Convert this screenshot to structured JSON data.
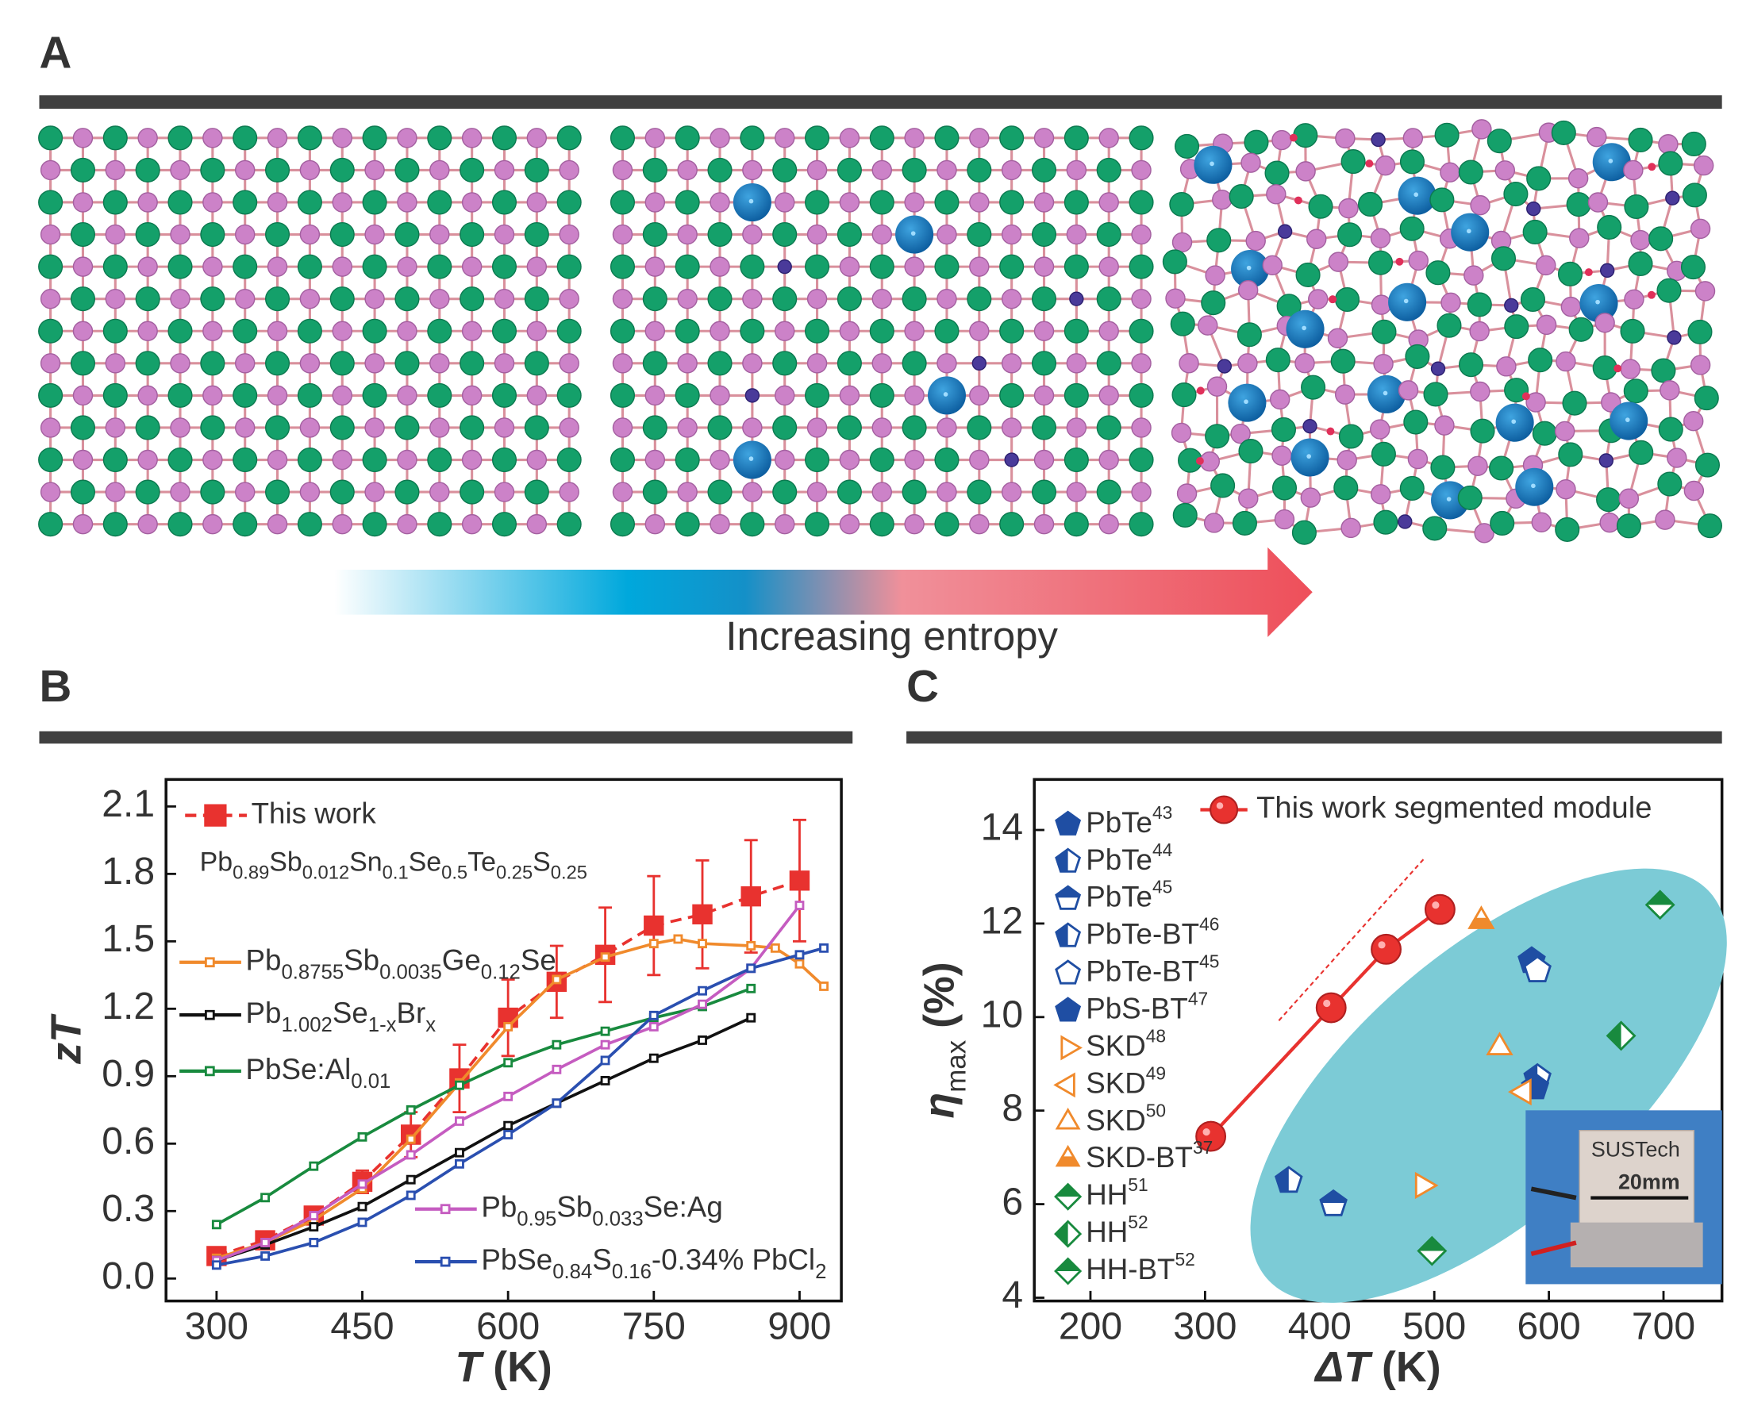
{
  "panels": {
    "A": {
      "label": "A",
      "caption": "Increasing entropy"
    },
    "B": {
      "label": "B"
    },
    "C": {
      "label": "C"
    }
  },
  "chart_data": [
    {
      "type": "line",
      "xlabel": "T (K)",
      "ylabel": "zT",
      "annotation": "Pb0.89Sb0.012Sn0.1Se0.5Te0.25S0.25",
      "xlim": [
        248,
        943
      ],
      "xticks": [
        300,
        450,
        600,
        750,
        900
      ],
      "ylim": [
        -0.1,
        2.22
      ],
      "yticks": [
        {
          "value": 0,
          "label": "0.0"
        },
        0.3,
        0.6,
        0.9,
        1.2,
        1.5,
        1.8,
        2.1
      ],
      "series": [
        {
          "name": "This work",
          "color": "#e8322f",
          "marker": "square:filled",
          "line_style": "dashed",
          "x": [
            300,
            350,
            400,
            450,
            500,
            550,
            600,
            650,
            700,
            750,
            800,
            850,
            900
          ],
          "values": [
            0.1,
            0.17,
            0.28,
            0.43,
            0.64,
            0.89,
            1.16,
            1.32,
            1.44,
            1.57,
            1.62,
            1.7,
            1.77
          ],
          "errors": [
            0.02,
            0.03,
            0.03,
            0.05,
            0.1,
            0.15,
            0.17,
            0.16,
            0.21,
            0.22,
            0.24,
            0.25,
            0.27
          ]
        },
        {
          "name": "Pb0.8755Sb0.0035Ge0.12Se",
          "color": "#f08a2c",
          "marker": "square:open",
          "line_style": "solid",
          "x": [
            300,
            350,
            400,
            450,
            500,
            550,
            600,
            650,
            700,
            750,
            775,
            800,
            850,
            875,
            900,
            925
          ],
          "values": [
            0.09,
            0.16,
            0.26,
            0.4,
            0.62,
            0.87,
            1.12,
            1.33,
            1.43,
            1.49,
            1.51,
            1.49,
            1.48,
            1.47,
            1.4,
            1.3
          ]
        },
        {
          "name": "Pb1.002Se1-xBrx",
          "color": "#111111",
          "marker": "square:open",
          "line_style": "solid",
          "x": [
            300,
            350,
            400,
            450,
            500,
            550,
            600,
            650,
            700,
            750,
            800,
            850
          ],
          "values": [
            0.08,
            0.15,
            0.23,
            0.32,
            0.44,
            0.56,
            0.68,
            0.78,
            0.88,
            0.98,
            1.06,
            1.16
          ]
        },
        {
          "name": "PbSe:Al0.01",
          "color": "#188a3e",
          "marker": "square:open",
          "line_style": "solid",
          "x": [
            300,
            350,
            400,
            450,
            500,
            550,
            600,
            650,
            700,
            750,
            800,
            850
          ],
          "values": [
            0.24,
            0.36,
            0.5,
            0.63,
            0.75,
            0.86,
            0.96,
            1.04,
            1.1,
            1.16,
            1.21,
            1.29
          ]
        },
        {
          "name": "Pb0.95Sb0.033Se:Ag",
          "color": "#c55cc0",
          "marker": "square:open",
          "line_style": "solid",
          "x": [
            300,
            350,
            400,
            450,
            500,
            550,
            600,
            650,
            700,
            750,
            800,
            850,
            900
          ],
          "values": [
            0.08,
            0.16,
            0.28,
            0.42,
            0.55,
            0.7,
            0.81,
            0.93,
            1.04,
            1.12,
            1.22,
            1.38,
            1.66
          ]
        },
        {
          "name": "PbSe0.84S0.16-0.34% PbCl2",
          "color": "#2a4fb0",
          "marker": "square:open",
          "line_style": "solid",
          "x": [
            300,
            350,
            400,
            450,
            500,
            550,
            600,
            650,
            700,
            750,
            800,
            850,
            900,
            925
          ],
          "values": [
            0.06,
            0.1,
            0.16,
            0.25,
            0.37,
            0.51,
            0.64,
            0.78,
            0.97,
            1.17,
            1.28,
            1.38,
            1.44,
            1.47
          ]
        }
      ]
    },
    {
      "type": "scatter",
      "xlabel": "ΔT (K)",
      "ylabel": "ηmax (%)",
      "xlim": [
        151,
        751
      ],
      "xticks": [
        200,
        300,
        400,
        500,
        600,
        700
      ],
      "ylim": [
        3.93,
        15.08
      ],
      "yticks": [
        4,
        6,
        8,
        10,
        12,
        14
      ],
      "inset": {
        "label": "SUSTech",
        "scale": "20mm"
      },
      "series": [
        {
          "name": "This work segmented module",
          "color": "#e8322f",
          "marker": "circle:filled",
          "line_style": "solid",
          "x": [
            305,
            410,
            458,
            505
          ],
          "values": [
            7.45,
            10.2,
            11.45,
            12.3
          ]
        },
        {
          "name": "PbTe43",
          "color": "#1f4ea3",
          "marker": "pentagon:filled",
          "x": [
            585
          ],
          "values": [
            11.2
          ]
        },
        {
          "name": "PbTe44",
          "color": "#1f4ea3",
          "marker": "pentagon:half-left",
          "x": [
            590
          ],
          "values": [
            8.7
          ]
        },
        {
          "name": "PbTe45",
          "color": "#1f4ea3",
          "marker": "pentagon:half-top",
          "x": [
            412
          ],
          "values": [
            6.0
          ]
        },
        {
          "name": "PbTe-BT46",
          "color": "#1f4ea3",
          "marker": "pentagon:half-left",
          "x": [
            373
          ],
          "values": [
            6.5
          ]
        },
        {
          "name": "PbTe-BT45",
          "color": "#1f4ea3",
          "marker": "pentagon:open",
          "x": [
            590
          ],
          "values": [
            11.0
          ]
        },
        {
          "name": "PbS-BT47",
          "color": "#1f4ea3",
          "marker": "pentagon:filled",
          "x": [
            588
          ],
          "values": [
            8.5
          ]
        },
        {
          "name": "SKD48",
          "color": "#f08a2c",
          "marker": "triangle-right:open",
          "x": [
            490
          ],
          "values": [
            6.4
          ]
        },
        {
          "name": "SKD49",
          "color": "#f08a2c",
          "marker": "triangle-left:open",
          "x": [
            578
          ],
          "values": [
            8.4
          ]
        },
        {
          "name": "SKD50",
          "color": "#f08a2c",
          "marker": "triangle-up:open",
          "x": [
            557
          ],
          "values": [
            9.35
          ]
        },
        {
          "name": "SKD-BT37",
          "color": "#f08a2c",
          "marker": "triangle-up:half-bottom",
          "x": [
            541
          ],
          "values": [
            12.05
          ]
        },
        {
          "name": "HH51",
          "color": "#188a3e",
          "marker": "diamond:half-top",
          "x": [
            498
          ],
          "values": [
            5.0
          ]
        },
        {
          "name": "HH52",
          "color": "#188a3e",
          "marker": "diamond:half-left",
          "x": [
            663
          ],
          "values": [
            9.6
          ]
        },
        {
          "name": "HH-BT52",
          "color": "#188a3e",
          "marker": "diamond:half-top",
          "x": [
            697
          ],
          "values": [
            12.4
          ]
        }
      ]
    }
  ]
}
